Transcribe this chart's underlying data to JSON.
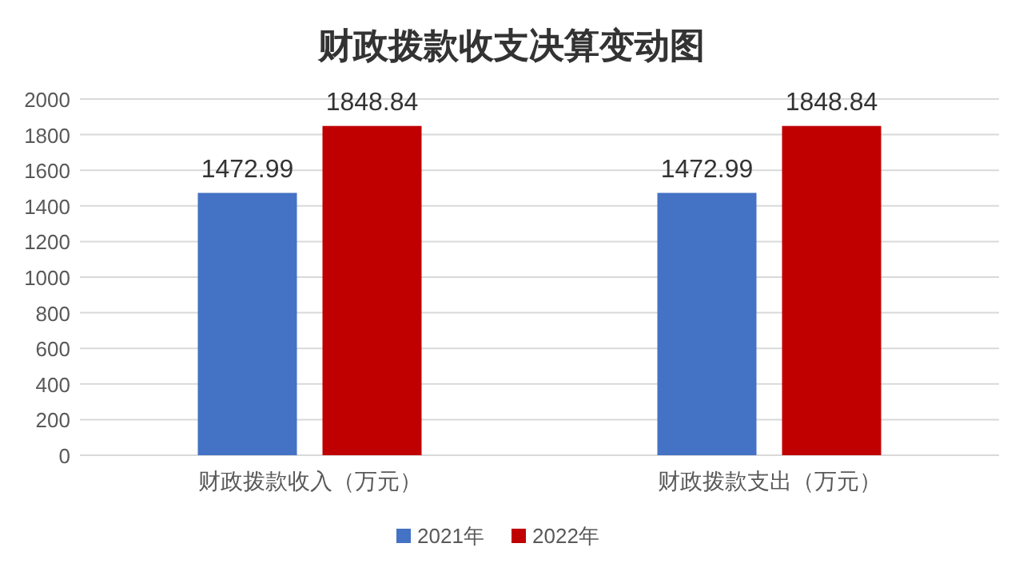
{
  "chart_data": {
    "type": "bar",
    "title": "财政拨款收支决算变动图",
    "categories": [
      "财政拨款收入（万元）",
      "财政拨款支出（万元）"
    ],
    "series": [
      {
        "name": "2021年",
        "color": "#4472c4",
        "values": [
          1472.99,
          1472.99
        ]
      },
      {
        "name": "2022年",
        "color": "#c00000",
        "values": [
          1848.84,
          1848.84
        ]
      }
    ],
    "ylim": [
      0,
      2000
    ],
    "yticks": [
      0,
      200,
      400,
      600,
      800,
      1000,
      1200,
      1400,
      1600,
      1800,
      2000
    ],
    "grid": "y",
    "legend": "bottom",
    "data_labels": true
  }
}
